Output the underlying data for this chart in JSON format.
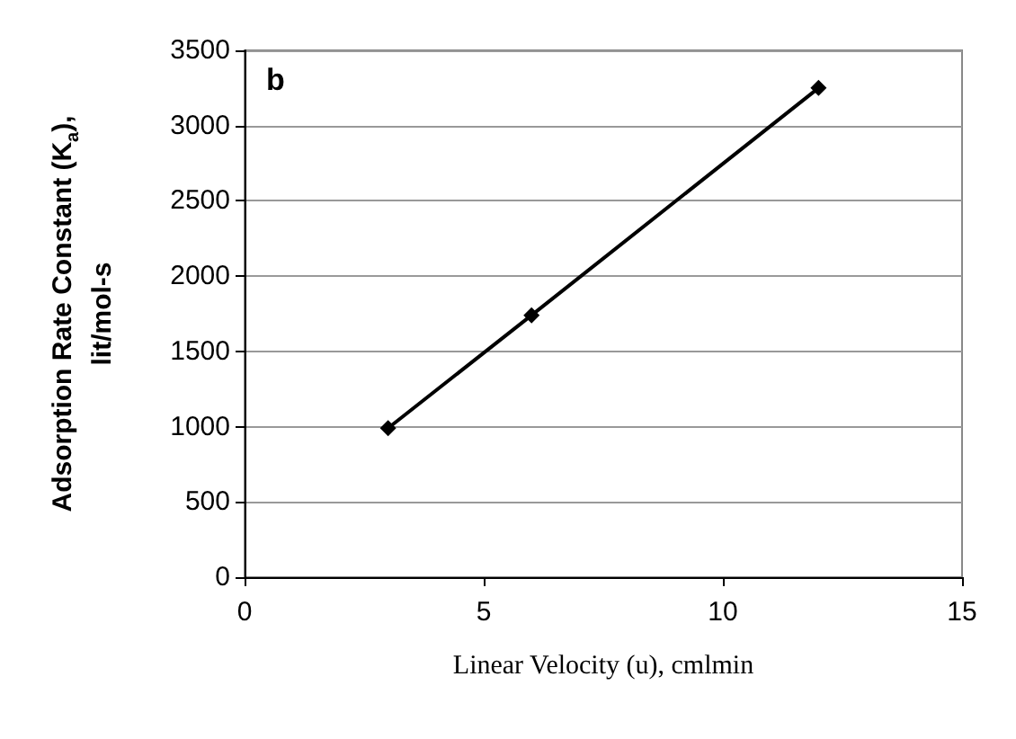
{
  "chart_data": {
    "type": "line",
    "xlabel": "Linear Velocity (u), cmlmin",
    "ylabel": "Adsorption Rate Constant (K$_{a}$),\nlit/mol-s",
    "annotations": [
      "b"
    ],
    "x": [
      3,
      6,
      12
    ],
    "series": [
      {
        "color": "#000000",
        "values": [
          990,
          1740,
          3250
        ]
      }
    ],
    "xlim": [
      0,
      15
    ],
    "xticks": [
      0,
      5,
      10,
      15
    ],
    "ylim": [
      0,
      3500
    ],
    "yticks": [
      0,
      500,
      1000,
      1500,
      2000,
      2500,
      3000,
      3500
    ],
    "grid": "y",
    "marker": "diamond",
    "line_style": "solid"
  }
}
